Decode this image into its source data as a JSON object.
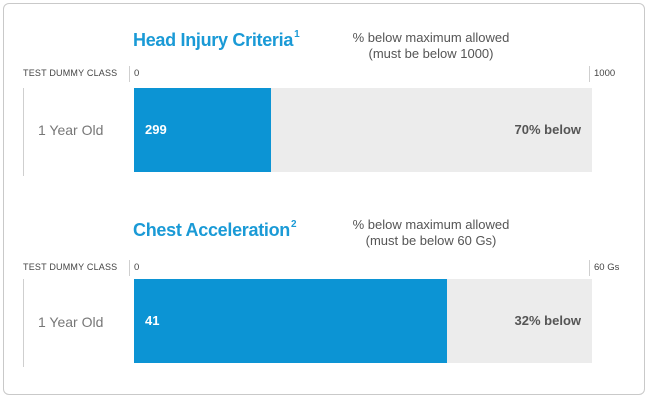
{
  "chart_data": [
    {
      "type": "bar",
      "title": "Head Injury Criteria",
      "title_footnote": "1",
      "subtitle_line1": "% below maximum allowed",
      "subtitle_line2": "(must be below 1000)",
      "category_header": "TEST DUMMY CLASS",
      "categories": [
        "1 Year Old"
      ],
      "values": [
        299
      ],
      "value_labels": [
        "299"
      ],
      "below_labels": [
        "70% below"
      ],
      "xlim": [
        0,
        1000
      ],
      "tick_min": "0",
      "tick_max": "1000",
      "colors": {
        "bar": "#0c94d4",
        "track": "#ececec",
        "title": "#1a9ad6"
      }
    },
    {
      "type": "bar",
      "title": "Chest Acceleration",
      "title_footnote": "2",
      "subtitle_line1": "% below maximum allowed",
      "subtitle_line2": "(must be below 60 Gs)",
      "category_header": "TEST DUMMY CLASS",
      "categories": [
        "1 Year Old"
      ],
      "values": [
        41
      ],
      "value_labels": [
        "41"
      ],
      "below_labels": [
        "32% below"
      ],
      "xlim": [
        0,
        60
      ],
      "tick_min": "0",
      "tick_max": "60 Gs",
      "colors": {
        "bar": "#0c94d4",
        "track": "#ececec",
        "title": "#1a9ad6"
      }
    }
  ]
}
